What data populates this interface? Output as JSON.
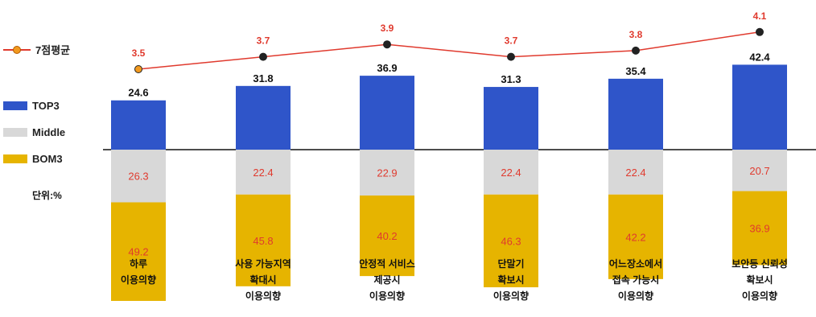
{
  "legend": {
    "line_label": "7점평균",
    "top3_label": "TOP3",
    "middle_label": "Middle",
    "bottom3_label": "BOM3"
  },
  "unit_label": "단위:%",
  "colors": {
    "top3": "#2f55c9",
    "middle": "#d8d8d8",
    "bottom3": "#e6b400",
    "line": "#e03a2e",
    "middle_text": "#e03a2e",
    "bottom_text": "#e03a2e"
  },
  "chart_data": {
    "type": "bar",
    "stacked": true,
    "categories": [
      "하루\n이용의향",
      "사용 가능지역\n확대시\n이용의향",
      "안정적 서비스\n제공시\n이용의향",
      "단말기\n확보시\n이용의향",
      "어느장소에서\n접속 가능시\n이용의향",
      "보안등 신뢰성\n확보시\n이용의향"
    ],
    "series": [
      {
        "name": "TOP3",
        "values": [
          24.6,
          31.8,
          36.9,
          31.3,
          35.4,
          42.4
        ]
      },
      {
        "name": "Middle",
        "values": [
          26.3,
          22.4,
          22.9,
          22.4,
          22.4,
          20.7
        ]
      },
      {
        "name": "BOM3",
        "values": [
          49.2,
          45.8,
          40.2,
          46.3,
          42.2,
          36.9
        ]
      }
    ],
    "line_series": {
      "name": "7점평균",
      "values": [
        3.5,
        3.7,
        3.9,
        3.7,
        3.8,
        4.1
      ]
    },
    "legend_position": "left"
  }
}
